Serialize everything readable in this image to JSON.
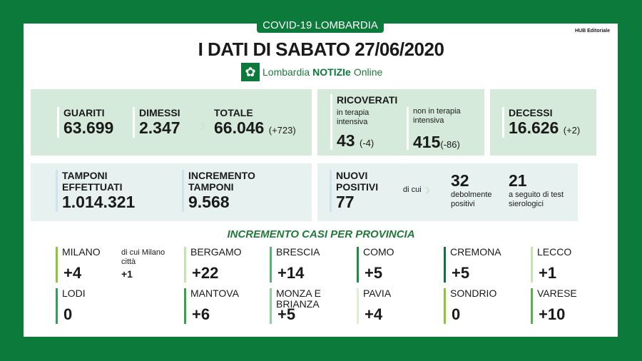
{
  "header": {
    "tag": "COVID-19 LOMBARDIA",
    "hub": "HUB Editoriale",
    "title": "I DATI DI SABATO 27/06/2020",
    "logo_a": "Lombardia ",
    "logo_b": "NOTIZIe",
    "logo_c": " Online"
  },
  "stats": {
    "guariti": {
      "label": "GUARITI",
      "value": "63.699"
    },
    "dimessi": {
      "label": "DIMESSI",
      "value": "2.347"
    },
    "totale": {
      "label": "TOTALE",
      "value": "66.046",
      "delta": "(+723)"
    },
    "ricoverati": {
      "label": "RICOVERATI",
      "ti_label": "in terapia intensiva",
      "ti_value": "43",
      "ti_delta": "(-4)",
      "nti_label": "non in terapia intensiva",
      "nti_value": "415",
      "nti_delta": "(-86)"
    },
    "decessi": {
      "label": "DECESSI",
      "value": "16.626",
      "delta": "(+2)"
    },
    "tamponi": {
      "label": "TAMPONI EFFETTUATI",
      "value": "1.014.321"
    },
    "incremento": {
      "label": "INCREMENTO TAMPONI",
      "value": "9.568"
    },
    "nuovi": {
      "label": "NUOVI POSITIVI",
      "value": "77",
      "di_cui": "di cui",
      "deb_value": "32",
      "deb_label": "debolmente positivi",
      "sier_value": "21",
      "sier_label": "a seguito di test sierologici"
    }
  },
  "province": {
    "title": "INCREMENTO CASI PER PROVINCIA",
    "milano_city": {
      "label": "di cui Milano città",
      "value": "+1"
    },
    "items": [
      {
        "name": "MILANO",
        "value": "+4",
        "color": "#8cc63f"
      },
      {
        "name": "BERGAMO",
        "value": "+22",
        "color": "#c5e3b0"
      },
      {
        "name": "BRESCIA",
        "value": "+14",
        "color": "#5bb07a"
      },
      {
        "name": "COMO",
        "value": "+5",
        "color": "#1e8a45"
      },
      {
        "name": "CREMONA",
        "value": "+5",
        "color": "#17703a"
      },
      {
        "name": "LECCO",
        "value": "+1",
        "color": "#c5e3b0"
      },
      {
        "name": "LODI",
        "value": "0",
        "color": "#3a9a5a"
      },
      {
        "name": "MANTOVA",
        "value": "+6",
        "color": "#3aa04a"
      },
      {
        "name": "MONZA E BRIANZA",
        "value": "+5",
        "color": "#8fcf9f"
      },
      {
        "name": "PAVIA",
        "value": "+4",
        "color": "#e0efd0"
      },
      {
        "name": "SONDRIO",
        "value": "0",
        "color": "#8cc63f"
      },
      {
        "name": "VARESE",
        "value": "+10",
        "color": "#5bb04a"
      }
    ]
  }
}
